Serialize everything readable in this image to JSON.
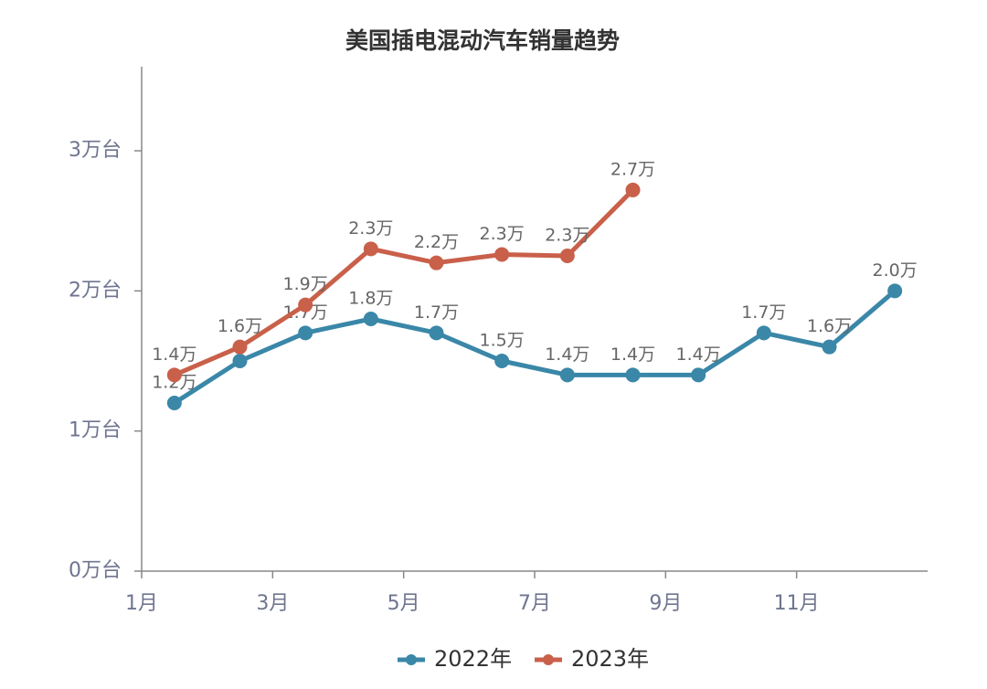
{
  "chart_data": {
    "type": "line",
    "title": "美国插电混动汽车销量趋势",
    "x": [
      1.5,
      2.5,
      3.5,
      4.5,
      5.5,
      6.5,
      7.5,
      8.5,
      9.5,
      10.5,
      11.5,
      12.5
    ],
    "xlim": [
      1,
      13
    ],
    "xticks": [
      {
        "value": 1,
        "label": "1月"
      },
      {
        "value": 3,
        "label": "3月"
      },
      {
        "value": 5,
        "label": "5月"
      },
      {
        "value": 7,
        "label": "7月"
      },
      {
        "value": 9,
        "label": "9月"
      },
      {
        "value": 11,
        "label": "11月"
      }
    ],
    "ylim": [
      0,
      3.6
    ],
    "yticks": [
      {
        "value": 0,
        "label": "0万台"
      },
      {
        "value": 1,
        "label": "1万台"
      },
      {
        "value": 2,
        "label": "2万台"
      },
      {
        "value": 3,
        "label": "3万台"
      }
    ],
    "grid": false,
    "legend": "bottom",
    "series": [
      {
        "name": "2022年",
        "color": "#3a87a8",
        "values": [
          1.2,
          1.5,
          1.7,
          1.8,
          1.7,
          1.5,
          1.4,
          1.4,
          1.4,
          1.7,
          1.6,
          2.0
        ],
        "value_labels": [
          "1.2万",
          null,
          "1.7万",
          "1.8万",
          "1.7万",
          "1.5万",
          "1.4万",
          "1.4万",
          "1.4万",
          "1.7万",
          "1.6万",
          "2.0万"
        ]
      },
      {
        "name": "2023年",
        "color": "#c9604a",
        "values": [
          1.4,
          1.6,
          1.9,
          2.3,
          2.2,
          2.26,
          2.25,
          2.72,
          null,
          null,
          null,
          null
        ],
        "value_labels": [
          "1.4万",
          "1.6万",
          "1.9万",
          "2.3万",
          "2.2万",
          "2.3万",
          "2.3万",
          "2.7万",
          null,
          null,
          null,
          null
        ]
      }
    ]
  }
}
